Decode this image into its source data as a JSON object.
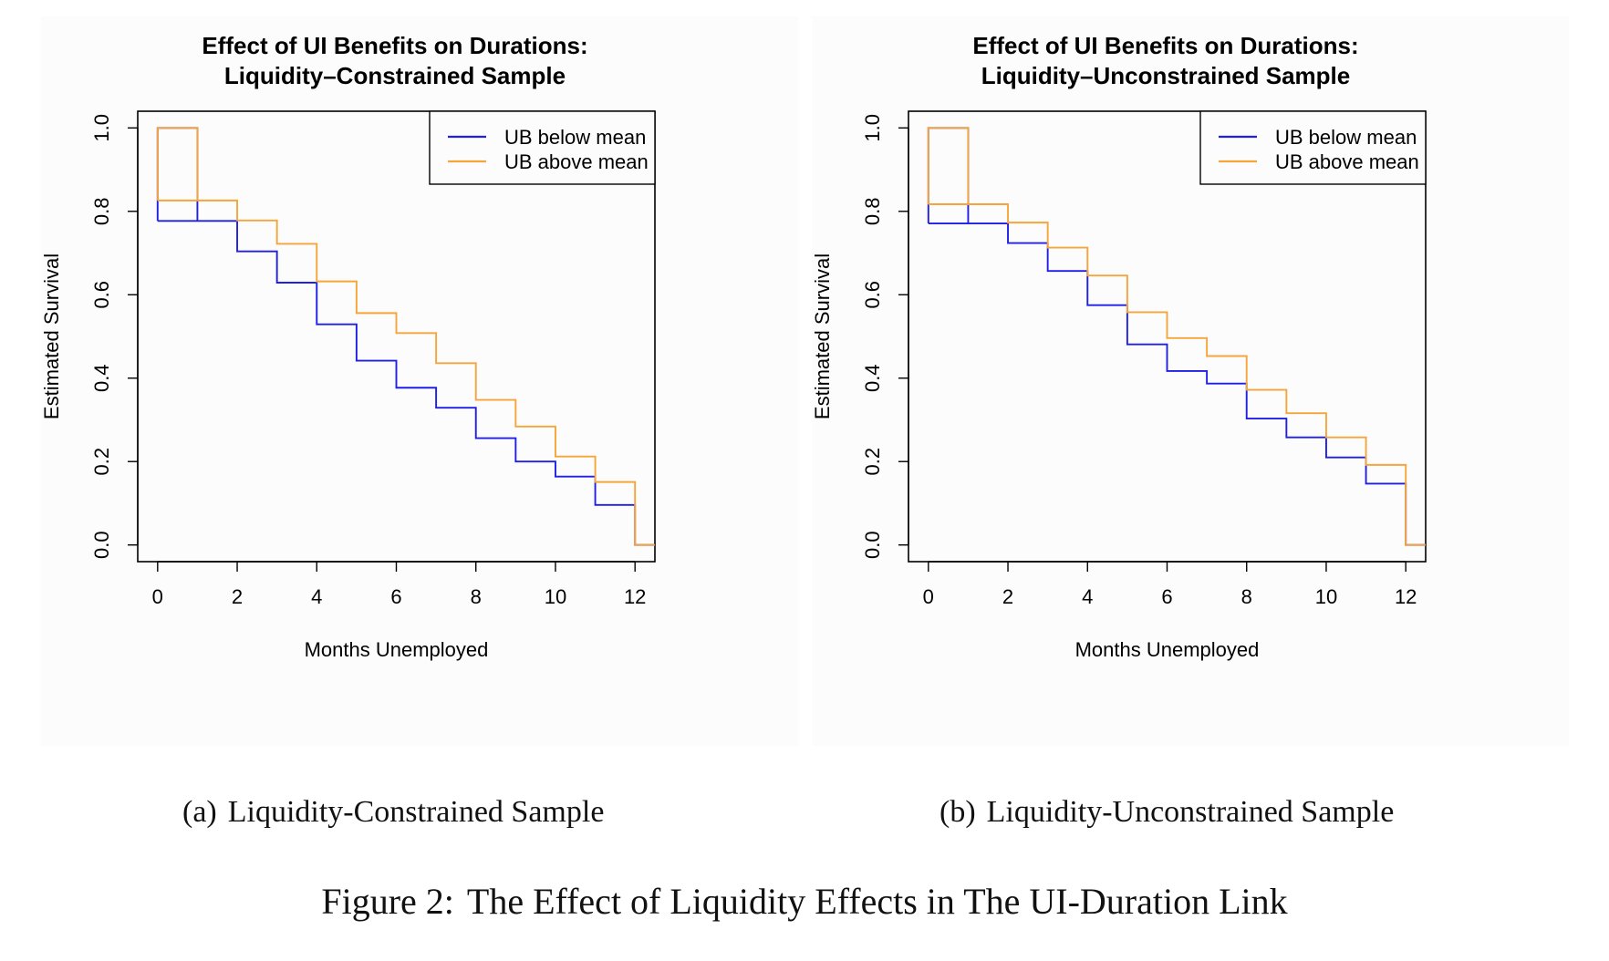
{
  "chart_data": [
    {
      "type": "line",
      "title": "Effect of UI Benefits on Durations:",
      "subtitle": "Liquidity–Constrained Sample",
      "xlabel": "Months Unemployed",
      "ylabel": "Estimated Survival",
      "xlim": [
        -0.5,
        12.5
      ],
      "ylim": [
        -0.04,
        1.04
      ],
      "xticks": [
        "0",
        "2",
        "4",
        "6",
        "8",
        "10",
        "12"
      ],
      "yticks": [
        "0.0",
        "0.2",
        "0.4",
        "0.6",
        "0.8",
        "1.0"
      ],
      "grid": false,
      "legend": "top-right",
      "x": [
        0,
        1,
        2,
        3,
        4,
        5,
        6,
        7,
        8,
        9,
        10,
        11,
        12,
        12.5
      ],
      "series": [
        {
          "name": "UB below mean",
          "color": "#1f1fe6",
          "values": [
            1.0,
            0.777,
            0.704,
            0.629,
            0.529,
            0.442,
            0.377,
            0.329,
            0.256,
            0.2,
            0.164,
            0.096,
            0.0,
            0.0
          ]
        },
        {
          "name": "UB above mean",
          "color": "#f5a53a",
          "values": [
            1.0,
            0.826,
            0.778,
            0.722,
            0.632,
            0.556,
            0.508,
            0.436,
            0.348,
            0.284,
            0.212,
            0.151,
            0.0,
            0.0
          ]
        }
      ]
    },
    {
      "type": "line",
      "title": "Effect of UI Benefits on Durations:",
      "subtitle": "Liquidity–Unconstrained Sample",
      "xlabel": "Months Unemployed",
      "ylabel": "Estimated Survival",
      "xlim": [
        -0.5,
        12.5
      ],
      "ylim": [
        -0.04,
        1.04
      ],
      "xticks": [
        "0",
        "2",
        "4",
        "6",
        "8",
        "10",
        "12"
      ],
      "yticks": [
        "0.0",
        "0.2",
        "0.4",
        "0.6",
        "0.8",
        "1.0"
      ],
      "grid": false,
      "legend": "top-right",
      "x": [
        0,
        1,
        2,
        3,
        4,
        5,
        6,
        7,
        8,
        9,
        10,
        11,
        12,
        12.5
      ],
      "series": [
        {
          "name": "UB below mean",
          "color": "#1f1fe6",
          "values": [
            1.0,
            0.771,
            0.724,
            0.657,
            0.575,
            0.481,
            0.417,
            0.387,
            0.303,
            0.258,
            0.21,
            0.147,
            0.0,
            0.0
          ]
        },
        {
          "name": "UB above mean",
          "color": "#f5a53a",
          "values": [
            1.0,
            0.817,
            0.773,
            0.713,
            0.646,
            0.558,
            0.496,
            0.453,
            0.372,
            0.316,
            0.258,
            0.192,
            0.0,
            0.0
          ]
        }
      ]
    }
  ],
  "subcaptions": [
    {
      "label": "(a)",
      "text": "Liquidity-Constrained Sample"
    },
    {
      "label": "(b)",
      "text": "Liquidity-Unconstrained Sample"
    }
  ],
  "figure_caption": {
    "label": "Figure 2:",
    "text": "The Effect of Liquidity Effects in The UI-Duration Link"
  }
}
